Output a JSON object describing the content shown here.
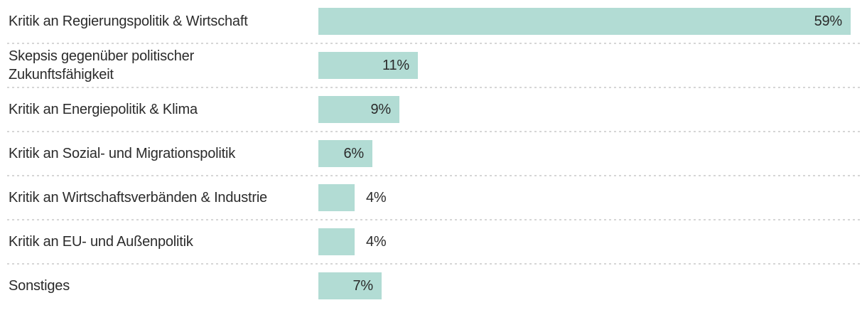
{
  "chart_data": {
    "type": "bar",
    "orientation": "horizontal",
    "title": "",
    "xlabel": "",
    "ylabel": "",
    "unit": "%",
    "grid": false,
    "legend": false,
    "xlim": [
      0,
      59
    ],
    "categories": [
      "Kritik an Regierungspolitik & Wirtschaft",
      "Skepsis gegenüber politischer\nZukunftsfähigkeit",
      "Kritik an Energiepolitik & Klima",
      "Kritik an Sozial- und Migrationspolitik",
      "Kritik an Wirtschaftsverbänden & Industrie",
      "Kritik an EU- und Außenpolitik",
      "Sonstiges"
    ],
    "values": [
      59,
      11,
      9,
      6,
      4,
      4,
      7
    ],
    "display_values": [
      "59%",
      "11%",
      "9%",
      "6%",
      "4%",
      "4%",
      "7%"
    ],
    "value_label_positions": [
      "inside",
      "inside",
      "inside",
      "inside",
      "outside",
      "outside",
      "inside"
    ],
    "colors": {
      "bar": "#b2dcd4",
      "text": "#2b2b2b",
      "divider": "#d6d6d6",
      "background": "#ffffff"
    }
  }
}
